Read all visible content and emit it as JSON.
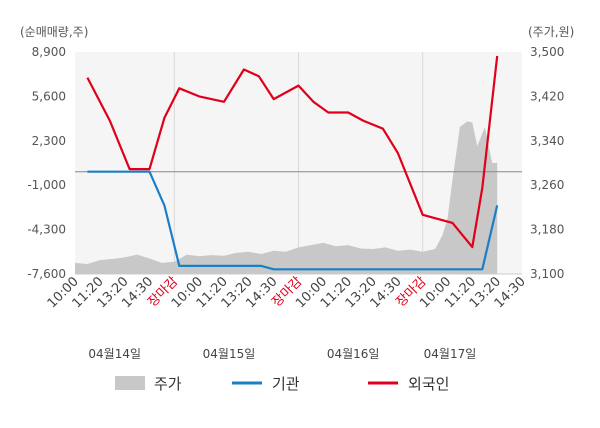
{
  "chart_data": {
    "type": "line",
    "left_axis_unit": "(순매매량,주)",
    "right_axis_unit": "(주가,원)",
    "left_ticks": [
      "8,900",
      "5,600",
      "2,300",
      "-1,000",
      "-4,300",
      "-7,600"
    ],
    "right_ticks": [
      "3,500",
      "3,420",
      "3,340",
      "3,260",
      "3,180",
      "3,100"
    ],
    "left_ylim": [
      -7600,
      8900
    ],
    "right_ylim": [
      3100,
      3500
    ],
    "x_ticks": [
      "10:00",
      "11:20",
      "13:20",
      "14:30",
      "장마감",
      "10:00",
      "11:20",
      "13:20",
      "14:30",
      "장마감",
      "10:00",
      "11:20",
      "13:20",
      "14:30",
      "장마감",
      "10:00",
      "11:20",
      "13:20",
      "14:30"
    ],
    "close_label": "장마감",
    "dates": [
      "04월14일",
      "04월15일",
      "04월16일",
      "04월17일"
    ],
    "legend": [
      "주가",
      "기관",
      "외국인"
    ],
    "colors": {
      "price_fill": "#c8c8c8",
      "institution": "#1a7fc8",
      "foreign": "#e0001b",
      "plot_bg": "#f5f5f5",
      "zero_line": "#888888",
      "close_label": "#e0001b"
    },
    "series": [
      {
        "name": "주가",
        "axis": "right",
        "kind": "area",
        "x": [
          0.0,
          0.5,
          1.0,
          1.5,
          2.0,
          2.5,
          3.0,
          3.5,
          4.0,
          4.5,
          5.0,
          5.5,
          6.0,
          6.5,
          7.0,
          7.5,
          8.0,
          8.5,
          9.0,
          9.5,
          10.0,
          10.5,
          11.0,
          11.5,
          12.0,
          12.5,
          13.0,
          13.5,
          14.0,
          14.5,
          14.8,
          15.0,
          15.2,
          15.5,
          15.8,
          16.0,
          16.2,
          16.5,
          16.8,
          17.0
        ],
        "values": [
          3120,
          3118,
          3125,
          3127,
          3130,
          3135,
          3128,
          3120,
          3122,
          3135,
          3132,
          3134,
          3133,
          3138,
          3140,
          3136,
          3142,
          3140,
          3148,
          3152,
          3156,
          3150,
          3152,
          3146,
          3145,
          3148,
          3142,
          3144,
          3140,
          3145,
          3170,
          3200,
          3270,
          3365,
          3375,
          3373,
          3330,
          3365,
          3300,
          3300
        ]
      },
      {
        "name": "기관",
        "axis": "left",
        "kind": "line",
        "x": [
          0.5,
          1,
          2,
          2.8,
          3,
          3.6,
          4.2,
          5.0,
          6.0,
          7.0,
          7.5,
          8.0,
          9.0,
          10.0,
          11.0,
          12.0,
          13.0,
          14.0,
          15.0,
          16.0,
          16.4,
          17.0
        ],
        "values": [
          5,
          5,
          5,
          5,
          5,
          -2500,
          -7000,
          -7000,
          -7000,
          -7000,
          -7000,
          -7250,
          -7250,
          -7250,
          -7250,
          -7250,
          -7250,
          -7250,
          -7250,
          -7250,
          -7250,
          -2500
        ]
      },
      {
        "name": "외국인",
        "axis": "left",
        "kind": "line",
        "x": [
          0.5,
          1.4,
          2.2,
          3.0,
          3.6,
          4.2,
          5.0,
          6.0,
          6.8,
          7.4,
          8.0,
          9.0,
          9.6,
          10.2,
          11.0,
          11.6,
          12.4,
          13.0,
          14.0,
          15.2,
          16.0,
          16.4,
          17.0
        ],
        "values": [
          7000,
          3800,
          200,
          200,
          4000,
          6200,
          5600,
          5200,
          7600,
          7100,
          5400,
          6400,
          5200,
          4400,
          4400,
          3800,
          3200,
          1400,
          -3200,
          -3800,
          -5600,
          -1200,
          8600
        ]
      }
    ]
  }
}
